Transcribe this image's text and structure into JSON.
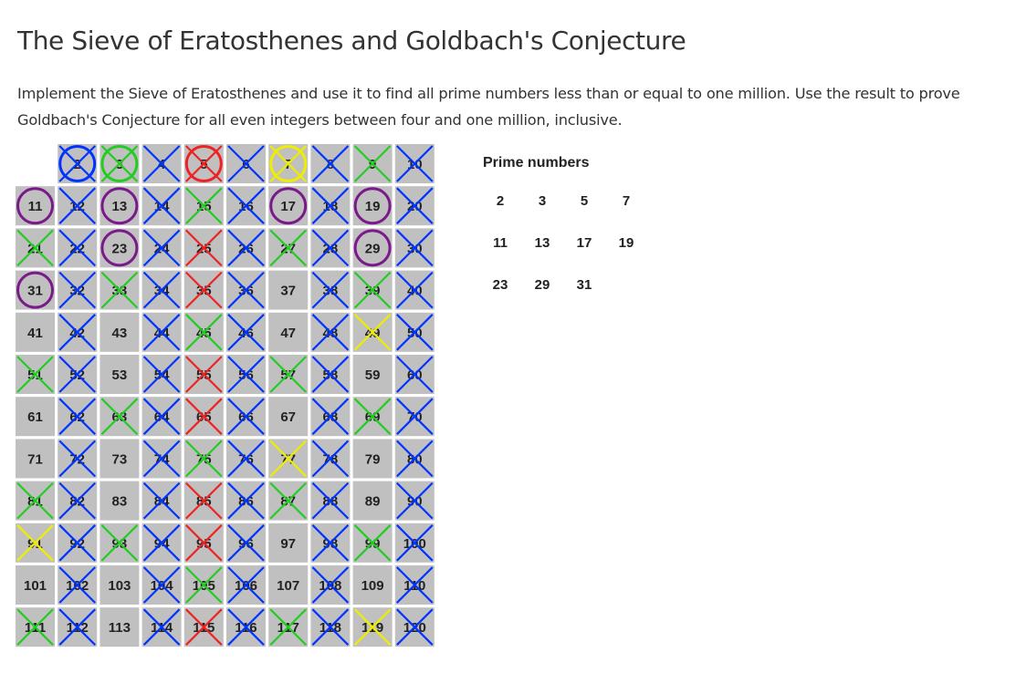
{
  "title": "The Sieve of Eratosthenes and Goldbach's Conjecture",
  "description": "Implement the Sieve of Eratosthenes and use it to find all prime numbers less than or equal to one million. Use the result to prove Goldbach's Conjecture for all even integers between four and one million, inclusive.",
  "sieve": {
    "max": 120,
    "columns": 10,
    "cell_color": "#c0c0c0",
    "prime_colors": {
      "2": "#0033ff",
      "3": "#22cc22",
      "5": "#ee2222",
      "7": "#eeee00"
    },
    "circle_color": "#7a1a8a",
    "circled": [
      11,
      13,
      17,
      19,
      23,
      29,
      31
    ]
  },
  "primes_panel": {
    "title": "Prime numbers",
    "rows": [
      [
        "2",
        "3",
        "5",
        "7"
      ],
      [
        "11",
        "13",
        "17",
        "19"
      ],
      [
        "23",
        "29",
        "31"
      ]
    ]
  }
}
